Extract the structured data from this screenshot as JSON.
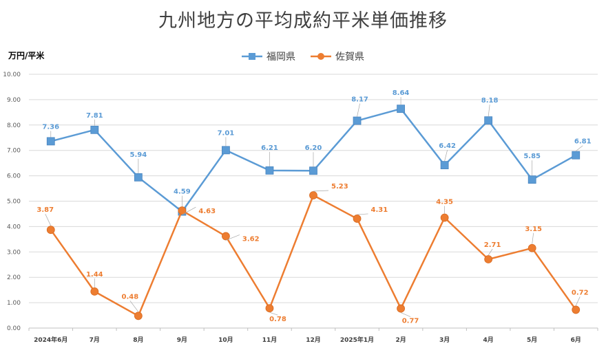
{
  "chart_data": {
    "type": "line",
    "title": "九州地方の平均成約平米単価推移",
    "ylabel": "万円/平米",
    "xlabel": "",
    "categories": [
      "2024年6月",
      "7月",
      "8月",
      "9月",
      "10月",
      "11月",
      "12月",
      "2025年1月",
      "2月",
      "3月",
      "4月",
      "5月",
      "6月"
    ],
    "ylim": [
      0,
      10
    ],
    "yticks": [
      "0.00",
      "1.00",
      "2.00",
      "3.00",
      "4.00",
      "5.00",
      "6.00",
      "7.00",
      "8.00",
      "9.00",
      "10.00"
    ],
    "grid": true,
    "legend_position": "top-center",
    "series": [
      {
        "name": "福岡県",
        "color": "#5B9BD5",
        "marker": "square",
        "values": [
          7.36,
          7.81,
          5.94,
          4.59,
          7.01,
          6.21,
          6.2,
          8.17,
          8.64,
          6.42,
          8.18,
          5.85,
          6.81
        ],
        "labels": [
          "7.36",
          "7.81",
          "5.94",
          "4.59",
          "7.01",
          "6.21",
          "6.20",
          "8.17",
          "8.64",
          "6.42",
          "8.18",
          "5.85",
          "6.81"
        ]
      },
      {
        "name": "佐賀県",
        "color": "#ED7D31",
        "marker": "circle",
        "values": [
          3.87,
          1.44,
          0.48,
          4.63,
          3.62,
          0.78,
          5.23,
          4.31,
          0.77,
          4.35,
          2.71,
          3.15,
          0.72
        ],
        "labels": [
          "3.87",
          "1.44",
          "0.48",
          "4.63",
          "3.62",
          "0.78",
          "5.23",
          "4.31",
          "0.77",
          "4.35",
          "2.71",
          "3.15",
          "0.72"
        ]
      }
    ]
  }
}
